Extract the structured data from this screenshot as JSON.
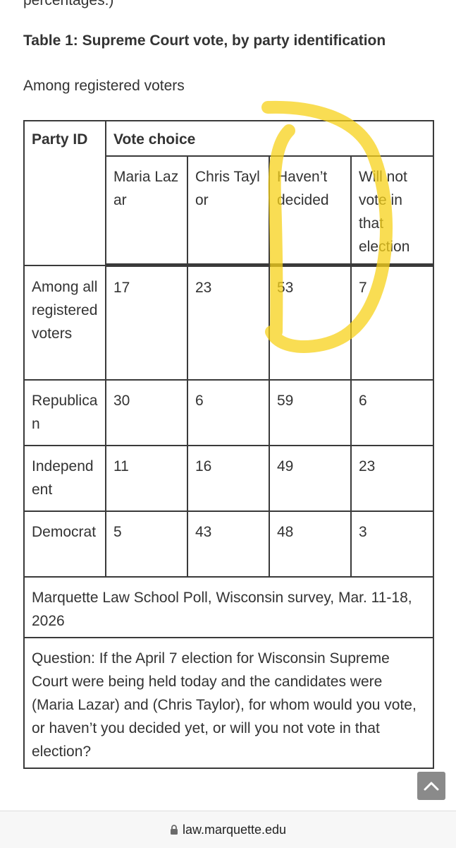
{
  "article": {
    "cut_text": "percentages.)",
    "table_title": "Table 1: Supreme Court vote, by party identification",
    "subtitle": "Among registered voters"
  },
  "table": {
    "header_party": "Party ID",
    "header_vote": "Vote choice",
    "columns": [
      "Maria Lazar",
      "Chris Taylor",
      "Haven’t decided",
      "Will not vote in that election"
    ],
    "rows": [
      {
        "label": "Among all registered voters",
        "values": [
          "17",
          "23",
          "53",
          "7"
        ]
      },
      {
        "label": "Republican",
        "values": [
          "30",
          "6",
          "59",
          "6"
        ]
      },
      {
        "label": "Independent",
        "values": [
          "11",
          "16",
          "49",
          "23"
        ]
      },
      {
        "label": "Democrat",
        "values": [
          "5",
          "43",
          "48",
          "3"
        ]
      }
    ],
    "source": "Marquette Law School Poll, Wisconsin survey, Mar. 11-18, 2026",
    "question": "Question: If the April 7 election for Wisconsin Supreme Court were being held today and the candidates were (Maria Lazar) and (Chris Taylor), for whom would you vote, or haven’t you decided yet, or will you not vote in that election?"
  },
  "browser": {
    "url": "law.marquette.edu",
    "lock_icon": "lock-icon",
    "scroll_icon": "chevron-up-icon"
  },
  "colors": {
    "highlight": "#f7d21a",
    "border": "#3a3a3a"
  }
}
